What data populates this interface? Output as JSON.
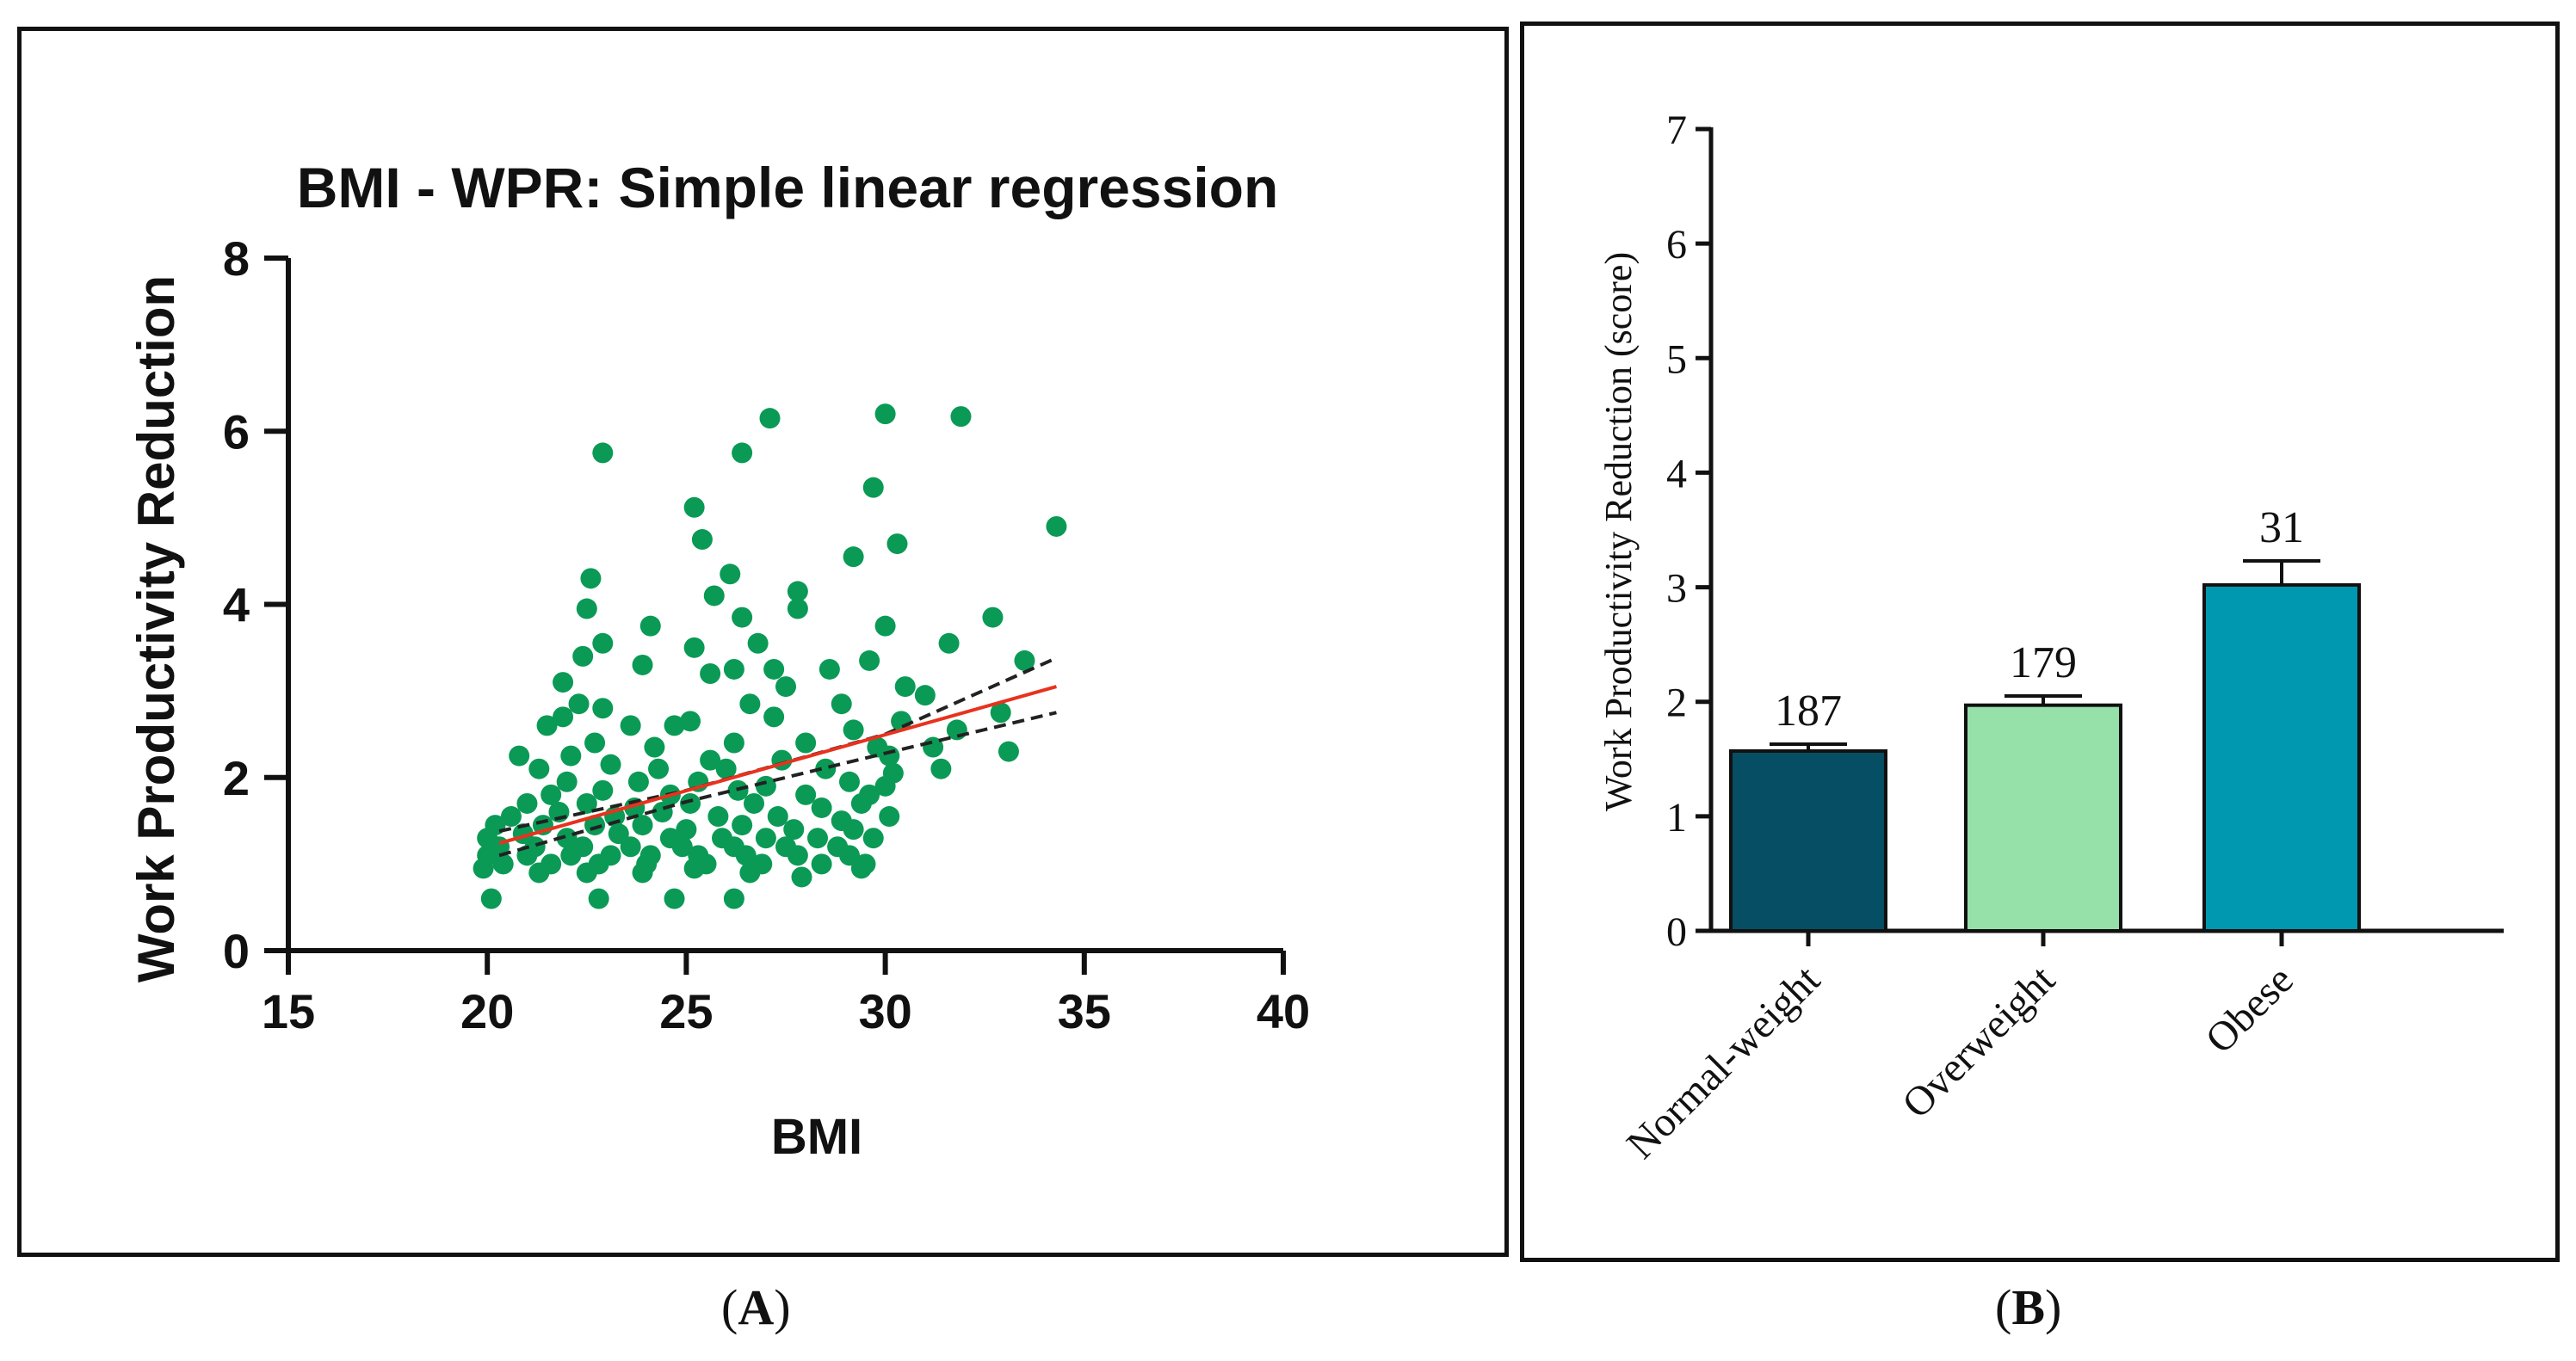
{
  "chart_data": [
    {
      "type": "scatter",
      "title": "BMI - WPR: Simple linear regression",
      "xlabel": "BMI",
      "ylabel": "Work Productivity Reduction",
      "xlim": [
        15,
        40
      ],
      "ylim": [
        0,
        8
      ],
      "xticks": [
        "15",
        "20",
        "25",
        "30",
        "35",
        "40"
      ],
      "yticks": [
        "0",
        "2",
        "4",
        "6",
        "8"
      ],
      "point_color": "#0a9a55",
      "fit_color": "#e8321e",
      "ci_color": "#222222",
      "regression": {
        "x": [
          20.3,
          34.3
        ],
        "y": [
          1.24,
          3.05
        ]
      },
      "confidence_upper": {
        "x": [
          20.3,
          25,
          30,
          34.3
        ],
        "y": [
          1.38,
          1.85,
          2.5,
          3.38
        ]
      },
      "confidence_lower": {
        "x": [
          20.3,
          25,
          30,
          34.3
        ],
        "y": [
          1.1,
          1.72,
          2.28,
          2.75
        ]
      },
      "points": [
        [
          22.9,
          5.75
        ],
        [
          26.4,
          5.75
        ],
        [
          27.1,
          6.15
        ],
        [
          30.0,
          6.2
        ],
        [
          31.9,
          6.17
        ],
        [
          34.3,
          4.9
        ],
        [
          25.2,
          5.12
        ],
        [
          29.7,
          5.35
        ],
        [
          25.4,
          4.75
        ],
        [
          30.3,
          4.7
        ],
        [
          29.2,
          4.55
        ],
        [
          22.6,
          4.3
        ],
        [
          26.1,
          4.35
        ],
        [
          27.8,
          4.15
        ],
        [
          25.7,
          4.1
        ],
        [
          22.5,
          3.95
        ],
        [
          27.8,
          3.95
        ],
        [
          24.1,
          3.75
        ],
        [
          26.4,
          3.85
        ],
        [
          32.7,
          3.85
        ],
        [
          30.0,
          3.75
        ],
        [
          26.8,
          3.55
        ],
        [
          22.9,
          3.55
        ],
        [
          25.2,
          3.5
        ],
        [
          31.6,
          3.55
        ],
        [
          22.4,
          3.4
        ],
        [
          23.9,
          3.3
        ],
        [
          26.2,
          3.25
        ],
        [
          27.2,
          3.25
        ],
        [
          28.6,
          3.25
        ],
        [
          29.6,
          3.35
        ],
        [
          33.5,
          3.35
        ],
        [
          21.9,
          3.1
        ],
        [
          25.6,
          3.2
        ],
        [
          27.5,
          3.05
        ],
        [
          30.5,
          3.05
        ],
        [
          31.0,
          2.95
        ],
        [
          22.3,
          2.85
        ],
        [
          22.9,
          2.8
        ],
        [
          26.6,
          2.85
        ],
        [
          28.9,
          2.85
        ],
        [
          21.9,
          2.7
        ],
        [
          25.1,
          2.65
        ],
        [
          27.2,
          2.7
        ],
        [
          30.4,
          2.65
        ],
        [
          32.9,
          2.75
        ],
        [
          21.5,
          2.6
        ],
        [
          23.6,
          2.6
        ],
        [
          24.7,
          2.6
        ],
        [
          29.2,
          2.55
        ],
        [
          31.8,
          2.55
        ],
        [
          22.7,
          2.4
        ],
        [
          24.2,
          2.35
        ],
        [
          26.2,
          2.4
        ],
        [
          28.0,
          2.4
        ],
        [
          29.8,
          2.35
        ],
        [
          31.2,
          2.35
        ],
        [
          20.8,
          2.25
        ],
        [
          22.1,
          2.25
        ],
        [
          25.6,
          2.2
        ],
        [
          27.4,
          2.2
        ],
        [
          30.1,
          2.25
        ],
        [
          31.4,
          2.1
        ],
        [
          33.1,
          2.3
        ],
        [
          21.3,
          2.1
        ],
        [
          23.1,
          2.15
        ],
        [
          24.3,
          2.1
        ],
        [
          26.0,
          2.1
        ],
        [
          28.5,
          2.1
        ],
        [
          30.2,
          2.05
        ],
        [
          22.0,
          1.95
        ],
        [
          23.8,
          1.95
        ],
        [
          25.3,
          1.95
        ],
        [
          27.0,
          1.9
        ],
        [
          29.1,
          1.95
        ],
        [
          30.0,
          1.9
        ],
        [
          21.6,
          1.8
        ],
        [
          22.9,
          1.85
        ],
        [
          24.6,
          1.8
        ],
        [
          26.3,
          1.85
        ],
        [
          28.0,
          1.8
        ],
        [
          29.6,
          1.8
        ],
        [
          21.0,
          1.7
        ],
        [
          22.5,
          1.7
        ],
        [
          23.7,
          1.65
        ],
        [
          25.1,
          1.7
        ],
        [
          26.7,
          1.7
        ],
        [
          28.4,
          1.65
        ],
        [
          29.4,
          1.7
        ],
        [
          20.6,
          1.55
        ],
        [
          21.8,
          1.6
        ],
        [
          23.2,
          1.55
        ],
        [
          24.4,
          1.6
        ],
        [
          25.8,
          1.55
        ],
        [
          27.3,
          1.55
        ],
        [
          28.9,
          1.5
        ],
        [
          30.1,
          1.55
        ],
        [
          20.2,
          1.45
        ],
        [
          21.4,
          1.45
        ],
        [
          22.7,
          1.45
        ],
        [
          23.9,
          1.45
        ],
        [
          25.0,
          1.4
        ],
        [
          26.4,
          1.45
        ],
        [
          27.7,
          1.4
        ],
        [
          29.2,
          1.4
        ],
        [
          20.0,
          1.3
        ],
        [
          20.9,
          1.35
        ],
        [
          22.0,
          1.3
        ],
        [
          23.3,
          1.35
        ],
        [
          24.6,
          1.3
        ],
        [
          25.9,
          1.3
        ],
        [
          27.0,
          1.3
        ],
        [
          28.3,
          1.3
        ],
        [
          29.7,
          1.3
        ],
        [
          20.3,
          1.2
        ],
        [
          21.2,
          1.2
        ],
        [
          22.4,
          1.2
        ],
        [
          23.6,
          1.2
        ],
        [
          24.9,
          1.2
        ],
        [
          26.2,
          1.2
        ],
        [
          27.5,
          1.2
        ],
        [
          28.8,
          1.2
        ],
        [
          20.0,
          1.1
        ],
        [
          21.0,
          1.1
        ],
        [
          22.1,
          1.1
        ],
        [
          23.1,
          1.1
        ],
        [
          24.1,
          1.1
        ],
        [
          25.3,
          1.1
        ],
        [
          26.5,
          1.1
        ],
        [
          27.8,
          1.1
        ],
        [
          29.1,
          1.1
        ],
        [
          20.4,
          1.0
        ],
        [
          21.6,
          1.0
        ],
        [
          22.8,
          1.0
        ],
        [
          24.0,
          1.0
        ],
        [
          25.5,
          1.0
        ],
        [
          26.9,
          1.0
        ],
        [
          28.4,
          1.0
        ],
        [
          29.5,
          1.0
        ],
        [
          19.9,
          0.95
        ],
        [
          21.3,
          0.9
        ],
        [
          22.5,
          0.9
        ],
        [
          23.9,
          0.9
        ],
        [
          25.2,
          0.95
        ],
        [
          26.6,
          0.9
        ],
        [
          20.1,
          0.6
        ],
        [
          22.8,
          0.6
        ],
        [
          24.7,
          0.6
        ],
        [
          26.2,
          0.6
        ],
        [
          27.9,
          0.85
        ],
        [
          29.4,
          0.95
        ]
      ]
    },
    {
      "type": "bar",
      "ylabel": "Work Productivity Reduction (score)",
      "ylim": [
        0,
        7
      ],
      "yticks": [
        "0",
        "1",
        "2",
        "3",
        "4",
        "5",
        "6",
        "7"
      ],
      "categories": [
        "Normal-weight",
        "Overweight",
        "Obese"
      ],
      "values": [
        1.57,
        1.97,
        3.02
      ],
      "error_upper": [
        1.63,
        2.05,
        3.23
      ],
      "counts": [
        "187",
        "179",
        "31"
      ],
      "bar_colors": [
        "#064e63",
        "#96e0aa",
        "#0097b0"
      ]
    }
  ],
  "captions": {
    "left": "A",
    "right": "B"
  }
}
